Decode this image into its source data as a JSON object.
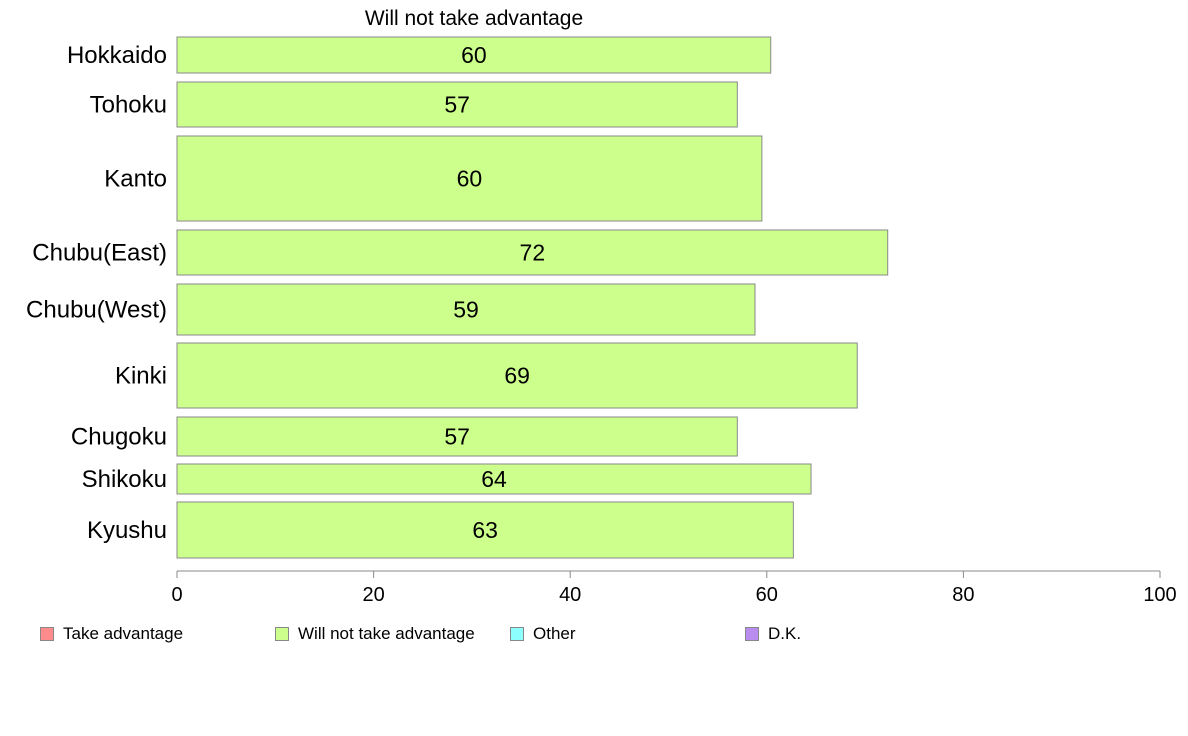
{
  "chart_data": {
    "type": "bar",
    "orientation": "horizontal",
    "title": "Will not take advantage",
    "categories": [
      "Hokkaido",
      "Tohoku",
      "Kanto",
      "Chubu(East)",
      "Chubu(West)",
      "Kinki",
      "Chugoku",
      "Shikoku",
      "Kyushu"
    ],
    "series": [
      {
        "name": "Will not take advantage",
        "values": [
          60.4,
          57,
          59.5,
          72.3,
          58.8,
          69.2,
          57,
          64.5,
          62.7
        ],
        "color": "#ccff8c"
      }
    ],
    "data_labels": [
      "60",
      "57",
      "60",
      "72",
      "59",
      "69",
      "57",
      "64",
      "63"
    ],
    "xlim": [
      0,
      100
    ],
    "x_ticks": [
      0,
      20,
      40,
      60,
      80,
      100
    ],
    "x_tick_labels": [
      "0",
      "20",
      "40",
      "60",
      "80",
      "100"
    ],
    "grid": false,
    "legend_position": "bottom",
    "legend": [
      {
        "label": "Take advantage",
        "color": "#ff8c8c"
      },
      {
        "label": "Will not take advantage",
        "color": "#ccff8c"
      },
      {
        "label": "Other",
        "color": "#8cffff"
      },
      {
        "label": "D.K.",
        "color": "#b98cf0"
      }
    ]
  }
}
